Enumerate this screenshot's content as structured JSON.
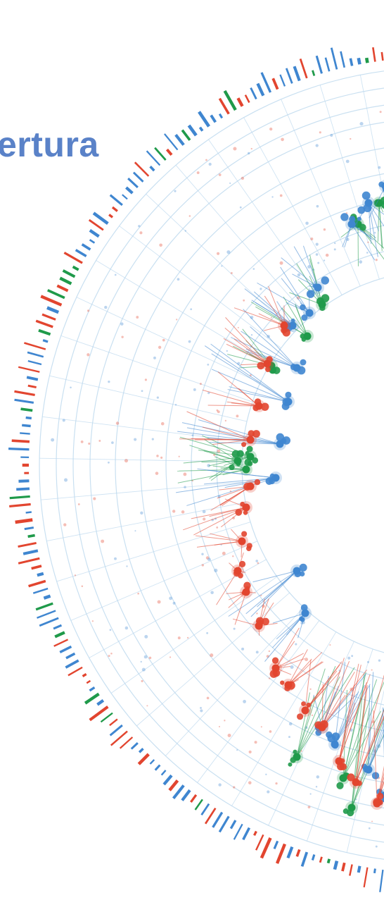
{
  "chart_data": {
    "type": "scatter",
    "title_fragment": "ertura",
    "grid": true,
    "colors": {
      "red": "#e2452f",
      "blue": "#3f86d0",
      "green": "#1f9a4a",
      "grid": "#bcd8ee",
      "title": "#5a82c8"
    },
    "series": [
      {
        "color_key": "green",
        "points": [
          [
            -0.015,
            1.045
          ],
          [
            -0.05,
            0.9
          ],
          [
            -0.095,
            0.72
          ],
          [
            -0.135,
            0.62
          ],
          [
            -0.185,
            0.57
          ],
          [
            -0.27,
            0.38
          ],
          [
            -0.305,
            0.305
          ],
          [
            -0.39,
            0.235
          ],
          [
            -0.44,
            0.02
          ],
          [
            -0.45,
            -0.01
          ],
          [
            -0.47,
            0.01
          ],
          [
            -0.33,
            -0.69
          ],
          [
            -0.22,
            -0.74
          ],
          [
            -0.2,
            -0.81
          ]
        ]
      },
      {
        "color_key": "blue",
        "points": [
          [
            -0.06,
            0.83
          ],
          [
            -0.12,
            0.66
          ],
          [
            -0.16,
            0.62
          ],
          [
            -0.2,
            0.57
          ],
          [
            -0.28,
            0.42
          ],
          [
            -0.3,
            0.36
          ],
          [
            -0.34,
            0.33
          ],
          [
            -0.33,
            0.23
          ],
          [
            -0.35,
            0.15
          ],
          [
            -0.37,
            0.05
          ],
          [
            -0.38,
            -0.03
          ],
          [
            -0.33,
            -0.25
          ],
          [
            -0.31,
            -0.35
          ],
          [
            -0.27,
            -0.62
          ],
          [
            -0.24,
            -0.66
          ],
          [
            -0.16,
            -0.72
          ],
          [
            -0.12,
            -0.78
          ],
          [
            -0.05,
            -0.8
          ],
          [
            -0.04,
            -0.86
          ]
        ]
      },
      {
        "color_key": "red",
        "points": [
          [
            -0.36,
            0.33
          ],
          [
            -0.4,
            0.24
          ],
          [
            -0.42,
            0.14
          ],
          [
            -0.44,
            0.06
          ],
          [
            -0.44,
            -0.05
          ],
          [
            -0.45,
            -0.1
          ],
          [
            -0.46,
            -0.18
          ],
          [
            -0.47,
            -0.25
          ],
          [
            -0.45,
            -0.3
          ],
          [
            -0.42,
            -0.38
          ],
          [
            -0.38,
            -0.48
          ],
          [
            -0.35,
            -0.52
          ],
          [
            -0.31,
            -0.58
          ],
          [
            -0.27,
            -0.62
          ],
          [
            -0.23,
            -0.7
          ],
          [
            -0.19,
            -0.75
          ],
          [
            -0.14,
            -0.8
          ],
          [
            -0.1,
            -0.86
          ],
          [
            -0.07,
            -0.92
          ],
          [
            -0.04,
            -0.94
          ],
          [
            -0.02,
            -0.98
          ]
        ]
      }
    ]
  }
}
